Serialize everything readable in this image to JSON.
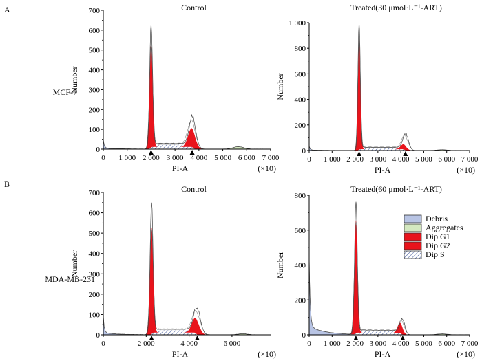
{
  "figure": {
    "section_labels": [
      "A",
      "B"
    ],
    "row_labels": [
      "MCF-7",
      "MDA-MB-231"
    ],
    "legend": [
      {
        "label": "Debris",
        "color": "#b8c4e4",
        "pattern": "solid"
      },
      {
        "label": "Aggregates",
        "color": "#d4e8c0",
        "pattern": "solid"
      },
      {
        "label": "Dip G1",
        "color": "#e8141c",
        "pattern": "solid"
      },
      {
        "label": "Dip G2",
        "color": "#e8141c",
        "pattern": "solid"
      },
      {
        "label": "Dip S",
        "color": "#ffffff",
        "pattern": "hatch"
      }
    ],
    "colors": {
      "g1": "#e8141c",
      "g2": "#e8141c",
      "debris": "#b8c4e4",
      "aggregates": "#d4e8c0",
      "s_hatch": "#4a5fa0",
      "outline": "#404040"
    }
  },
  "chart_data": [
    {
      "type": "area",
      "title": "Control",
      "xlabel": "PI-A",
      "xunit": "(×10)",
      "ylabel": "Number",
      "xlim": [
        0,
        7000
      ],
      "ylim": [
        0,
        700
      ],
      "xticks": [
        0,
        1000,
        2000,
        3000,
        4000,
        5000,
        6000,
        7000
      ],
      "xtick_labels": [
        "0",
        "1 000",
        "2 000",
        "3 000",
        "4 000",
        "5 000",
        "6 000",
        "7 000"
      ],
      "yticks": [
        0,
        100,
        200,
        300,
        400,
        500,
        600,
        700
      ],
      "ytick_labels": [
        "0",
        "100",
        "200",
        "300",
        "400",
        "500",
        "600",
        "700"
      ],
      "g1": {
        "mean": 2000,
        "sd": 70,
        "height": 525
      },
      "g2": {
        "mean": 3700,
        "sd": 150,
        "height": 95
      },
      "s": {
        "from": 2050,
        "to": 3700,
        "level": 22
      },
      "debris": {
        "height": 40
      },
      "aggregates": {
        "center": 5650,
        "height": 12
      },
      "outline_peaks": [
        {
          "x": 2000,
          "y": 610
        },
        {
          "x": 3740,
          "y": 145
        }
      ],
      "markers": [
        2000,
        3720
      ]
    },
    {
      "type": "area",
      "title": "Treated(30 μmol·L⁻¹-ART)",
      "xlabel": "PI-A",
      "xunit": "(×10)",
      "ylabel": "Number",
      "xlim": [
        0,
        7000
      ],
      "ylim": [
        0,
        1000
      ],
      "xticks": [
        0,
        1000,
        2000,
        3000,
        4000,
        5000,
        6000,
        7000
      ],
      "xtick_labels": [
        "0",
        "1 000",
        "2 000",
        "3 000",
        "4 000",
        "5 000",
        "6 000",
        "7 000"
      ],
      "yticks": [
        0,
        200,
        400,
        600,
        800,
        1000
      ],
      "ytick_labels": [
        "0",
        "200",
        "400",
        "600",
        "800",
        "1 000"
      ],
      "g1": {
        "mean": 2180,
        "sd": 60,
        "height": 900
      },
      "g2": {
        "mean": 4120,
        "sd": 130,
        "height": 40
      },
      "s": {
        "from": 2230,
        "to": 4100,
        "level": 20
      },
      "debris": {
        "height": 30
      },
      "aggregates": {
        "center": 5800,
        "height": 6
      },
      "outline_peaks": [
        {
          "x": 2180,
          "y": 990
        },
        {
          "x": 4220,
          "y": 125
        }
      ],
      "markers": [
        2180,
        4200
      ]
    },
    {
      "type": "area",
      "title": "Control",
      "xlabel": "PI-A",
      "xunit": "(×10)",
      "ylabel": "Number",
      "xlim": [
        0,
        7800
      ],
      "ylim": [
        0,
        700
      ],
      "xticks": [
        0,
        2000,
        4000,
        6000
      ],
      "xtick_labels": [
        "0",
        "2 000",
        "4 000",
        "6 000"
      ],
      "yticks": [
        0,
        100,
        200,
        300,
        400,
        500,
        600,
        700
      ],
      "ytick_labels": [
        "0",
        "100",
        "200",
        "300",
        "400",
        "500",
        "600",
        "700"
      ],
      "g1": {
        "mean": 2250,
        "sd": 80,
        "height": 525
      },
      "g2": {
        "mean": 4300,
        "sd": 170,
        "height": 75
      },
      "s": {
        "from": 2350,
        "to": 4250,
        "level": 22
      },
      "debris": {
        "height": 80
      },
      "aggregates": {
        "center": 6500,
        "height": 5
      },
      "outline_peaks": [
        {
          "x": 2250,
          "y": 645
        },
        {
          "x": 4380,
          "y": 125
        }
      ],
      "markers": [
        2250,
        4380
      ]
    },
    {
      "type": "area",
      "title": "Treated(60 μmol·L⁻¹-ART)",
      "xlabel": "PI-A",
      "xunit": "(×10)",
      "ylabel": "Number",
      "xlim": [
        0,
        7000
      ],
      "ylim": [
        0,
        800
      ],
      "xticks": [
        0,
        1000,
        2000,
        3000,
        4000,
        5000,
        6000,
        7000
      ],
      "xtick_labels": [
        "0",
        "1 000",
        "2 000",
        "3 000",
        "4 000",
        "5 000",
        "6 000",
        "7 000"
      ],
      "yticks": [
        0,
        200,
        400,
        600,
        800
      ],
      "ytick_labels": [
        "0",
        "200",
        "400",
        "600",
        "800"
      ],
      "g1": {
        "mean": 2040,
        "sd": 70,
        "height": 650
      },
      "g2": {
        "mean": 3970,
        "sd": 110,
        "height": 60
      },
      "s": {
        "from": 2110,
        "to": 3950,
        "level": 20
      },
      "debris": {
        "height": 390
      },
      "aggregates": {
        "center": 5800,
        "height": 5
      },
      "outline_peaks": [
        {
          "x": 2040,
          "y": 750
        },
        {
          "x": 4080,
          "y": 85
        }
      ],
      "markers": [
        2040,
        4080
      ]
    }
  ]
}
